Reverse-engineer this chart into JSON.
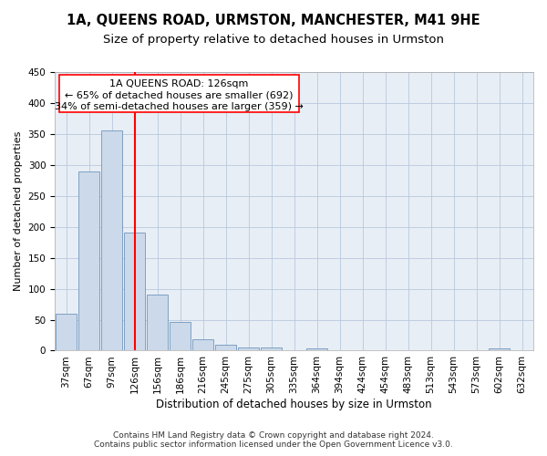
{
  "title": "1A, QUEENS ROAD, URMSTON, MANCHESTER, M41 9HE",
  "subtitle": "Size of property relative to detached houses in Urmston",
  "xlabel": "Distribution of detached houses by size in Urmston",
  "ylabel": "Number of detached properties",
  "categories": [
    "37sqm",
    "67sqm",
    "97sqm",
    "126sqm",
    "156sqm",
    "186sqm",
    "216sqm",
    "245sqm",
    "275sqm",
    "305sqm",
    "335sqm",
    "364sqm",
    "394sqm",
    "424sqm",
    "454sqm",
    "483sqm",
    "513sqm",
    "543sqm",
    "573sqm",
    "602sqm",
    "632sqm"
  ],
  "values": [
    60,
    290,
    355,
    190,
    90,
    47,
    18,
    9,
    5,
    5,
    0,
    3,
    0,
    0,
    0,
    0,
    0,
    0,
    0,
    3,
    0
  ],
  "bar_color": "#ccd9ea",
  "bar_edge_color": "#7096bc",
  "grid_color": "#b8c8dc",
  "background_color": "#e8eef5",
  "property_bar_index": 3,
  "property_line_color": "red",
  "annotation_line1": "1A QUEENS ROAD: 126sqm",
  "annotation_line2": "← 65% of detached houses are smaller (692)",
  "annotation_line3": "34% of semi-detached houses are larger (359) →",
  "footer_text": "Contains HM Land Registry data © Crown copyright and database right 2024.\nContains public sector information licensed under the Open Government Licence v3.0.",
  "ylim": [
    0,
    450
  ],
  "yticks": [
    0,
    50,
    100,
    150,
    200,
    250,
    300,
    350,
    400,
    450
  ],
  "title_fontsize": 10.5,
  "subtitle_fontsize": 9.5,
  "xlabel_fontsize": 8.5,
  "ylabel_fontsize": 8,
  "tick_fontsize": 7.5,
  "annotation_fontsize": 8,
  "footer_fontsize": 6.5
}
